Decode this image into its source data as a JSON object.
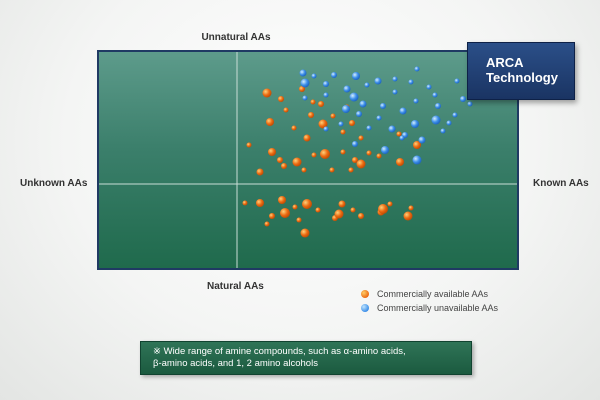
{
  "labels": {
    "top": "Unnatural AAs",
    "bottom": "Natural AAs",
    "left": "Unknown AAs",
    "right": "Known AAs"
  },
  "badge": {
    "line1": "ARCA",
    "line2": "Technology"
  },
  "legend": [
    {
      "label": "Commercially available AAs",
      "color": "#ec6a12"
    },
    {
      "label": "Commercially unavailable AAs",
      "color": "#3c8ee8"
    }
  ],
  "note": {
    "line1": "※ Wide range of amine compounds, such as α-amino acids,",
    "line2": "β-amino acids, and 1, 2 amino alcohols"
  },
  "colors": {
    "plot_top": "#5d9b8b",
    "plot_bottom": "#1f6a4c",
    "border": "#1f3a63",
    "available": "#ec6a12",
    "unavailable": "#3c8ee8"
  }
}
